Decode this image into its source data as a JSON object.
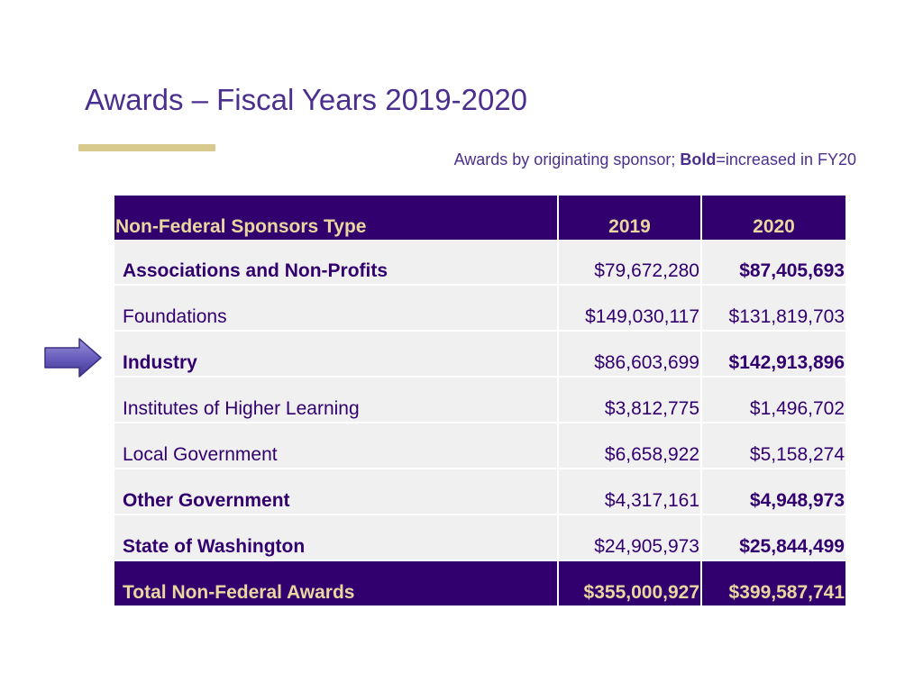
{
  "slide": {
    "title": "Awards – Fiscal Years 2019-2020",
    "subtitle_prefix": "Awards by originating sponsor; ",
    "subtitle_bold": "Bold",
    "subtitle_suffix": "=increased in FY20"
  },
  "colors": {
    "primary_purple": "#32006e",
    "title_purple": "#4b2f8e",
    "gold": "#e8d8a0",
    "rule_gold": "#d8c98d",
    "row_grey": "#f0f0f0"
  },
  "icons": {
    "pointer": "right-arrow-icon"
  },
  "table": {
    "headers": {
      "type": "Non-Federal Sponsors Type",
      "y2019": "2019",
      "y2020": "2020"
    },
    "rows": [
      {
        "type": "Associations and Non-Profits",
        "y2019": "$79,672,280",
        "y2020": "$87,405,693",
        "bold": true
      },
      {
        "type": "Foundations",
        "y2019": "$149,030,117",
        "y2020": "$131,819,703",
        "bold": false
      },
      {
        "type": "Industry",
        "y2019": "$86,603,699",
        "y2020": "$142,913,896",
        "bold": true
      },
      {
        "type": "Institutes of Higher Learning",
        "y2019": "$3,812,775",
        "y2020": "$1,496,702",
        "bold": false
      },
      {
        "type": "Local Government",
        "y2019": "$6,658,922",
        "y2020": "$5,158,274",
        "bold": false
      },
      {
        "type": "Other Government",
        "y2019": "$4,317,161",
        "y2020": "$4,948,973",
        "bold": true
      },
      {
        "type": "State of Washington",
        "y2019": "$24,905,973",
        "y2020": "$25,844,499",
        "bold": true
      }
    ],
    "total": {
      "type": "Total Non-Federal Awards",
      "y2019": "$355,000,927",
      "y2020": "$399,587,741"
    }
  }
}
